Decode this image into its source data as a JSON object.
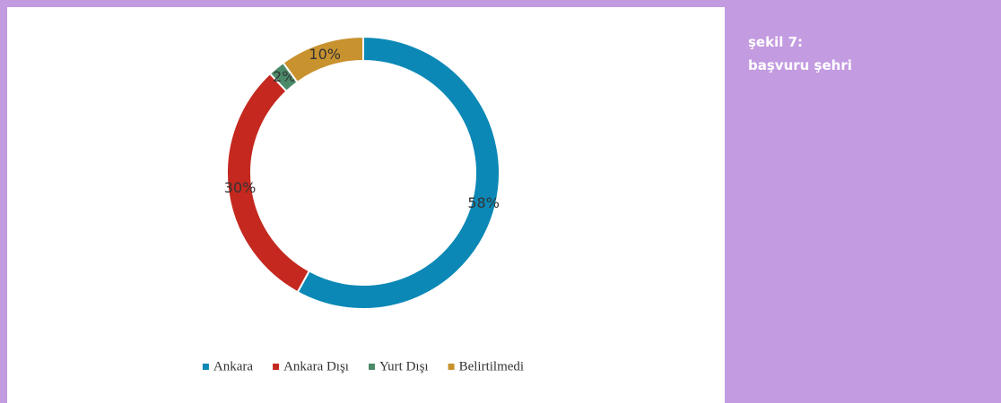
{
  "caption": {
    "lines": [
      "şekil 7:",
      "başvuru şehri"
    ]
  },
  "chart_data": {
    "type": "donut",
    "categories": [
      "Ankara",
      "Ankara Dışı",
      "Yurt Dışı",
      "Belirtilmedi"
    ],
    "values": [
      58,
      30,
      2,
      10
    ],
    "value_labels": [
      "58%",
      "30%",
      "2%",
      "10%"
    ],
    "colors": [
      "#0b88b6",
      "#c4281f",
      "#4b8a68",
      "#c8922f"
    ],
    "legend": "bottom"
  }
}
